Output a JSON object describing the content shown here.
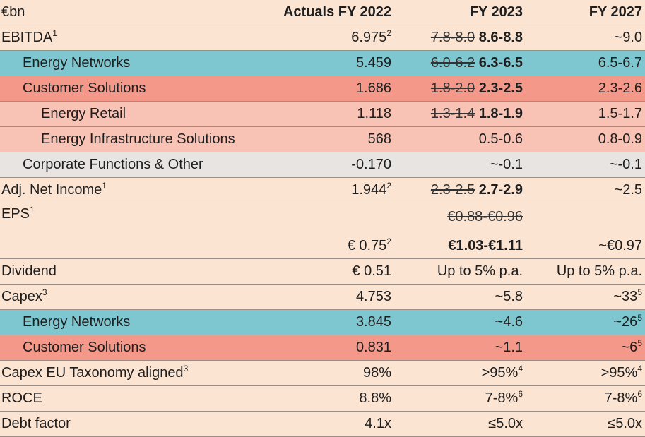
{
  "header": {
    "unit": "€bn",
    "col1": "Actuals FY 2022",
    "col2": "FY 2023",
    "col3": "FY 2027"
  },
  "rows": [
    {
      "label": "EBITDA",
      "label_sup": "1",
      "a": "6.975",
      "a_sup": "2",
      "old": "7.8-8.0",
      "new": "8.6-8.8",
      "f27": "~9.0"
    },
    {
      "label": "Energy Networks",
      "a": "5.459",
      "old": "6.0-6.2",
      "new": "6.3-6.5",
      "f27": "6.5-6.7"
    },
    {
      "label": "Customer Solutions",
      "a": "1.686",
      "old": "1.8-2.0",
      "new": "2.3-2.5",
      "f27": "2.3-2.6"
    },
    {
      "label": "Energy Retail",
      "a": "1.118",
      "old": "1.3-1.4",
      "new": "1.8-1.9",
      "f27": "1.5-1.7"
    },
    {
      "label": "Energy Infrastructure Solutions",
      "a": "568",
      "f23": "0.5-0.6",
      "f27": "0.8-0.9"
    },
    {
      "label": "Corporate Functions & Other",
      "a": "-0.170",
      "f23": "~-0.1",
      "f27": "~-0.1"
    },
    {
      "label": "Adj. Net Income",
      "label_sup": "1",
      "a": "1.944",
      "a_sup": "2",
      "old": "2.3-2.5",
      "new": "2.7-2.9",
      "f27": "~2.5"
    },
    {
      "label": "EPS",
      "label_sup": "1",
      "a": "€ 0.75",
      "a_sup": "2",
      "old": "€0.88-€0.96",
      "new": "€1.03-€1.11",
      "f27": "~€0.97"
    },
    {
      "label": "Dividend",
      "a": "€ 0.51",
      "f23": "Up to 5% p.a.",
      "f27": "Up to 5% p.a."
    },
    {
      "label": "Capex",
      "label_sup": "3",
      "a": "4.753",
      "f23": "~5.8",
      "f27": "~33",
      "f27_sup": "5"
    },
    {
      "label": "Energy Networks",
      "a": "3.845",
      "f23": "~4.6",
      "f27": "~26",
      "f27_sup": "5"
    },
    {
      "label": "Customer Solutions",
      "a": "0.831",
      "f23": "~1.1",
      "f27": "~6",
      "f27_sup": "5"
    },
    {
      "label": "Capex EU Taxonomy aligned",
      "label_sup": "3",
      "a": "98%",
      "f23": ">95%",
      "f23_sup": "4",
      "f27": ">95%",
      "f27_sup": "4"
    },
    {
      "label": "ROCE",
      "a": "8.8%",
      "f23": "7-8%",
      "f23_sup": "6",
      "f27": "7-8%",
      "f27_sup": "6"
    },
    {
      "label": "Debt factor",
      "a": "4.1x",
      "f23": "≤5.0x",
      "f27": "≤5.0x"
    }
  ],
  "colors": {
    "background": "#fbe4d2",
    "teal": "#7ec7d0",
    "coral": "#f4998a",
    "pink": "#f8c3b5",
    "grey": "#e7e4e2"
  }
}
